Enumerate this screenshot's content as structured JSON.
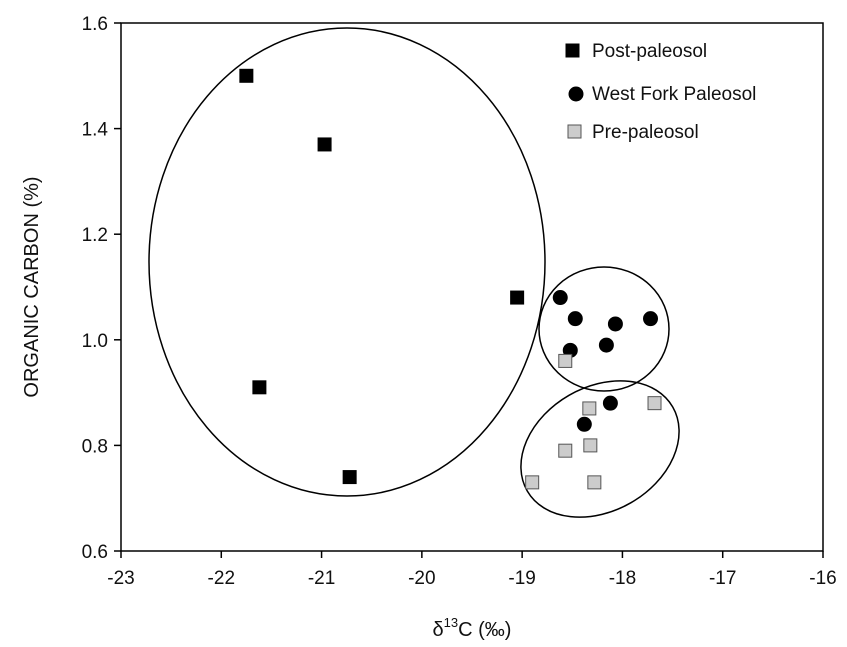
{
  "chart_data": {
    "type": "scatter",
    "xlabel_symbol": "δ",
    "xlabel_sup": "13",
    "xlabel_main": "C (",
    "xlabel_unit": "‰",
    "xlabel_close": ")",
    "ylabel": "ORGANIC CARBON (%)",
    "xlim": [
      -23,
      -16
    ],
    "ylim": [
      0.6,
      1.6
    ],
    "x_ticks": [
      "-23",
      "-22",
      "-21",
      "-20",
      "-19",
      "-18",
      "-17",
      "-16"
    ],
    "y_ticks": [
      "0.6",
      "0.8",
      "1.0",
      "1.2",
      "1.4",
      "1.6"
    ],
    "grid": false,
    "legend_position": "top-right",
    "series": [
      {
        "name": "Post-paleosol",
        "marker": "square",
        "color": "#000000",
        "points": [
          [
            -21.75,
            1.5
          ],
          [
            -20.97,
            1.37
          ],
          [
            -19.05,
            1.08
          ],
          [
            -21.62,
            0.91
          ],
          [
            -20.72,
            0.74
          ]
        ]
      },
      {
        "name": "West Fork Paleosol",
        "marker": "circle",
        "color": "#000000",
        "points": [
          [
            -18.62,
            1.08
          ],
          [
            -18.47,
            1.04
          ],
          [
            -18.07,
            1.03
          ],
          [
            -17.72,
            1.04
          ],
          [
            -18.52,
            0.98
          ],
          [
            -18.16,
            0.99
          ],
          [
            -18.12,
            0.88
          ],
          [
            -18.38,
            0.84
          ]
        ]
      },
      {
        "name": "Pre-paleosol",
        "marker": "square",
        "color": "#cccccc",
        "points": [
          [
            -18.57,
            0.96
          ],
          [
            -18.33,
            0.87
          ],
          [
            -17.68,
            0.88
          ],
          [
            -18.32,
            0.8
          ],
          [
            -18.57,
            0.79
          ],
          [
            -18.9,
            0.73
          ],
          [
            -18.28,
            0.73
          ]
        ]
      }
    ]
  }
}
